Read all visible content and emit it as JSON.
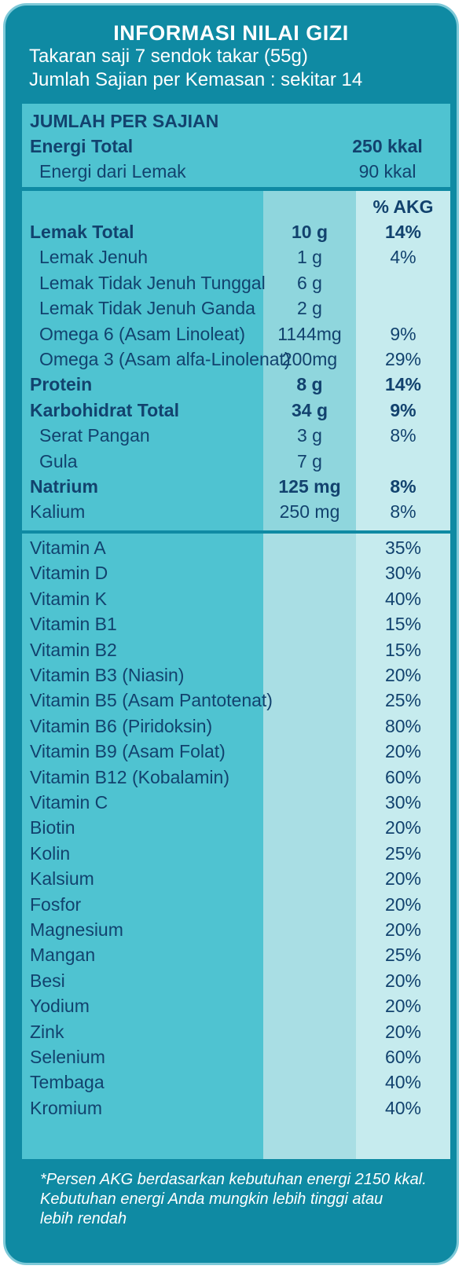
{
  "header": {
    "title": "INFORMASI NILAI GIZI",
    "serving": "Takaran saji 7 sendok takar (55g)",
    "servings_per_pack": "Jumlah Sajian per Kemasan : sekitar 14"
  },
  "energy": {
    "section": "JUMLAH PER SAJIAN",
    "total_label": "Energi Total",
    "total_value": "250 kkal",
    "fat_label": "Energi dari Lemak",
    "fat_value": "90 kkal"
  },
  "macros": {
    "akg_header": "% AKG",
    "rows": [
      {
        "name": "Lemak Total",
        "amount": "10 g",
        "akg": "14%"
      },
      {
        "name": "Lemak Jenuh",
        "amount": "1 g",
        "akg": "4%"
      },
      {
        "name": "Lemak Tidak Jenuh Tunggal",
        "amount": "6 g",
        "akg": ""
      },
      {
        "name": "Lemak Tidak Jenuh Ganda",
        "amount": "2 g",
        "akg": ""
      },
      {
        "name": "Omega 6 (Asam Linoleat)",
        "amount": "1144mg",
        "akg": "9%"
      },
      {
        "name": "Omega 3 (Asam alfa-Linolenat)",
        "amount": "200mg",
        "akg": "29%"
      },
      {
        "name": "Protein",
        "amount": "8 g",
        "akg": "14%"
      },
      {
        "name": "Karbohidrat Total",
        "amount": "34 g",
        "akg": "9%"
      },
      {
        "name": "Serat Pangan",
        "amount": "3 g",
        "akg": "8%"
      },
      {
        "name": "Gula",
        "amount": "7 g",
        "akg": ""
      },
      {
        "name": "Natrium",
        "amount": "125 mg",
        "akg": "8%"
      },
      {
        "name": "Kalium",
        "amount": "250 mg",
        "akg": "8%"
      }
    ]
  },
  "vitamins": [
    {
      "name": "Vitamin A",
      "akg": "35%"
    },
    {
      "name": "Vitamin D",
      "akg": "30%"
    },
    {
      "name": "Vitamin K",
      "akg": "40%"
    },
    {
      "name": "Vitamin B1",
      "akg": "15%"
    },
    {
      "name": "Vitamin B2",
      "akg": "15%"
    },
    {
      "name": "Vitamin B3 (Niasin)",
      "akg": "20%"
    },
    {
      "name": "Vitamin B5 (Asam Pantotenat)",
      "akg": "25%"
    },
    {
      "name": "Vitamin B6 (Piridoksin)",
      "akg": "80%"
    },
    {
      "name": "Vitamin B9 (Asam Folat)",
      "akg": "20%"
    },
    {
      "name": "Vitamin B12 (Kobalamin)",
      "akg": "60%"
    },
    {
      "name": "Vitamin C",
      "akg": "30%"
    },
    {
      "name": "Biotin",
      "akg": "20%"
    },
    {
      "name": "Kolin",
      "akg": "25%"
    },
    {
      "name": "Kalsium",
      "akg": "20%"
    },
    {
      "name": "Fosfor",
      "akg": "20%"
    },
    {
      "name": "Magnesium",
      "akg": "20%"
    },
    {
      "name": "Mangan",
      "akg": "25%"
    },
    {
      "name": "Besi",
      "akg": "20%"
    },
    {
      "name": "Yodium",
      "akg": "20%"
    },
    {
      "name": "Zink",
      "akg": "20%"
    },
    {
      "name": "Selenium",
      "akg": "60%"
    },
    {
      "name": "Tembaga",
      "akg": "40%"
    },
    {
      "name": "Kromium",
      "akg": "40%"
    }
  ],
  "footnote": {
    "line1": "*Persen AKG berdasarkan kebutuhan energi 2150 kkal.",
    "line2": "Kebutuhan energi Anda mungkin lebih tinggi atau",
    "line3": "lebih rendah"
  },
  "colors": {
    "frame": "#0f8aa3",
    "panel": "#4fc3d1",
    "text": "#12426e"
  }
}
